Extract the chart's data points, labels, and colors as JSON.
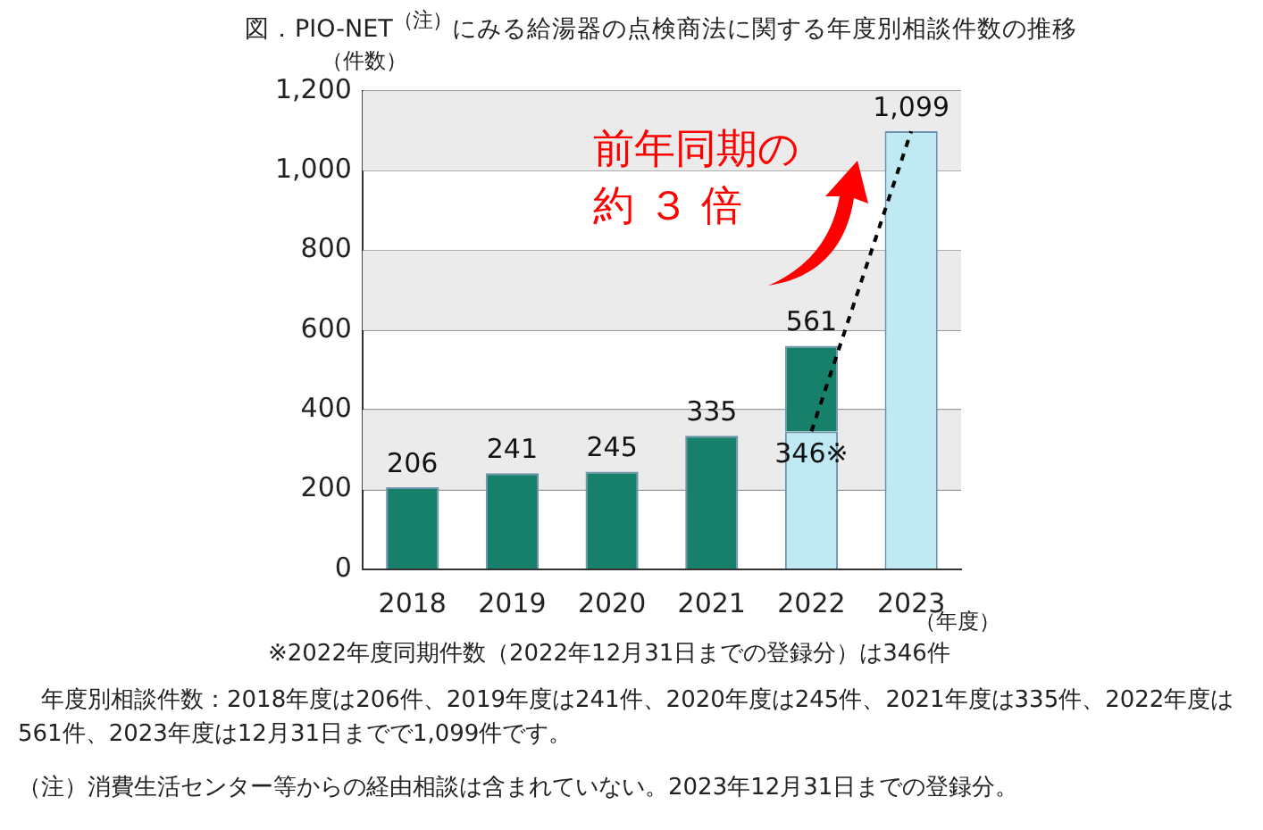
{
  "chart_data": {
    "type": "bar",
    "title": "図．PIO-NET$^{（注）}$にみる給湯器の点検商法に関する年度別相談件数の推移",
    "ylabel": "（件数）",
    "xlabel": "（年度）",
    "categories": [
      "2018",
      "2019",
      "2020",
      "2021",
      "2022",
      "2023"
    ],
    "stacked": true,
    "series": [
      {
        "color": "#bfeaf4",
        "values": [
          null,
          null,
          null,
          null,
          346,
          1099
        ],
        "value_labels": [
          null,
          null,
          null,
          null,
          "346※",
          null
        ]
      },
      {
        "color": "#17806a",
        "values": [
          206,
          241,
          245,
          335,
          215,
          null
        ]
      },
      {
        "type": "line",
        "color": "#000000",
        "line_style": "dashed",
        "marker": "none",
        "values": [
          null,
          null,
          null,
          null,
          346,
          1099
        ]
      }
    ],
    "totals": [
      "206",
      "241",
      "245",
      "335",
      "561",
      "1,099"
    ],
    "ylim": [
      0,
      1200
    ],
    "yticks": [
      0,
      200,
      400,
      600,
      800,
      {
        "value": 1000,
        "label": "1,000"
      },
      {
        "value": 1200,
        "label": "1,200"
      }
    ],
    "grid": "y",
    "bands": [
      {
        "axis": "y",
        "from": 200,
        "to": 400,
        "color": "#ebebeb"
      },
      {
        "axis": "y",
        "from": 600,
        "to": 800,
        "color": "#ebebeb"
      },
      {
        "axis": "y",
        "from": 1000,
        "to": 1200,
        "color": "#ebebeb"
      }
    ],
    "legend": false,
    "annotations": [
      "前年同期の",
      "約 ３ 倍",
      "※2022年度同期件数（2022年12月31日までの登録分）は346件",
      "年度別相談件数：2018年度は206件、2019年度は241件、2020年度は245件、2021年度は335件、2022年度は561件、2023年度は12月31日までで1,099件です。",
      "（注）消費生活センター等からの経由相談は含まれていない。2023年12月31日までの登録分。"
    ]
  }
}
